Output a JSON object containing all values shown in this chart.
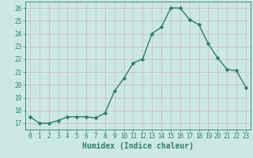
{
  "x": [
    0,
    1,
    2,
    3,
    4,
    5,
    6,
    7,
    8,
    9,
    10,
    11,
    12,
    13,
    14,
    15,
    16,
    17,
    18,
    19,
    20,
    21,
    22,
    23
  ],
  "y": [
    17.5,
    17.0,
    17.0,
    17.2,
    17.5,
    17.5,
    17.5,
    17.4,
    17.8,
    19.5,
    20.5,
    21.7,
    22.0,
    24.0,
    24.5,
    26.0,
    26.0,
    25.1,
    24.7,
    23.2,
    22.1,
    21.2,
    21.1,
    19.8
  ],
  "line_color": "#2e7d6e",
  "marker_color": "#2e7d6e",
  "bg_color": "#cce8e4",
  "grid_color": "#c8b8b8",
  "xlabel": "Humidex (Indice chaleur)",
  "xlim": [
    -0.5,
    23.5
  ],
  "ylim": [
    16.5,
    26.5
  ],
  "yticks": [
    17,
    18,
    19,
    20,
    21,
    22,
    23,
    24,
    25,
    26
  ],
  "xticks": [
    0,
    1,
    2,
    3,
    4,
    5,
    6,
    7,
    8,
    9,
    10,
    11,
    12,
    13,
    14,
    15,
    16,
    17,
    18,
    19,
    20,
    21,
    22,
    23
  ],
  "tick_color": "#2e7d6e",
  "label_color": "#2e7d6e",
  "xlabel_fontsize": 7.0,
  "tick_fontsize": 5.5,
  "line_width": 1.0,
  "marker_size": 2.5
}
